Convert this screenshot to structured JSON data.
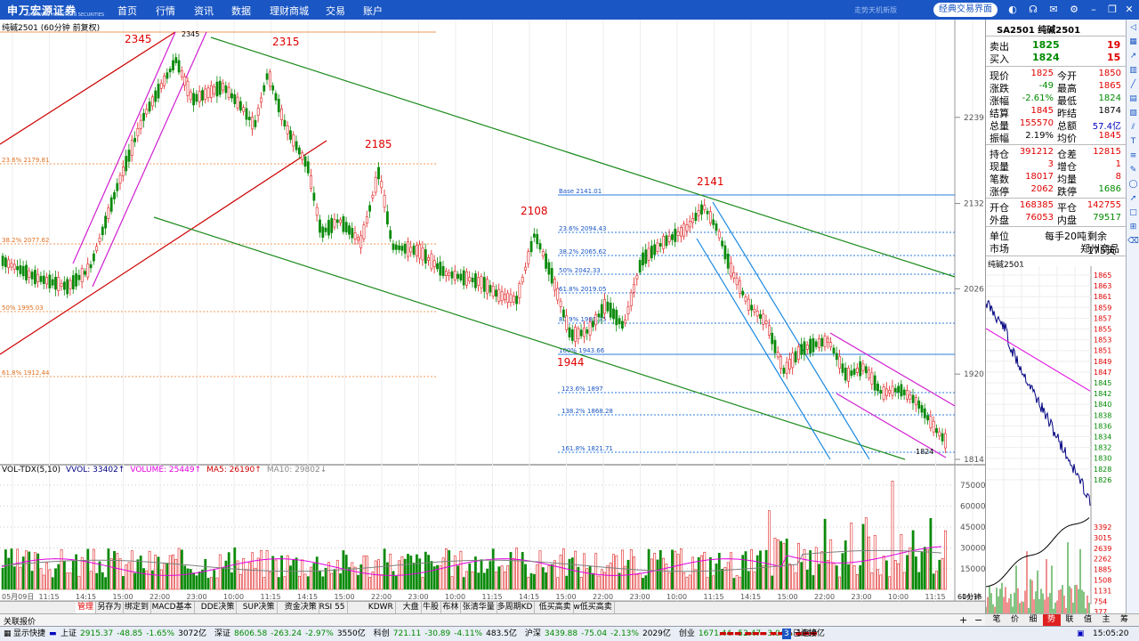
{
  "topbar": {
    "logo": "申万宏源证券",
    "logo_sub": "SHENWAN HONGYUAN SECURITIES",
    "nav": [
      "首页",
      "行情",
      "资讯",
      "数据",
      "理财商城",
      "交易",
      "账户"
    ],
    "ad_text": "走势天机新版",
    "classic_label": "经典交易界面",
    "icons": [
      "skin-icon",
      "headset-icon",
      "mail-icon",
      "settings-icon",
      "minimize-icon",
      "restore-icon",
      "close-icon"
    ],
    "clock": ""
  },
  "main_chart": {
    "title": "纯碱2501 (60分钟 前复权)",
    "price_axis": [
      "2239",
      "2132",
      "2026",
      "1920",
      "1814"
    ],
    "peak_labels": [
      "2345",
      "2315",
      "2185",
      "2108",
      "2141",
      "1944"
    ],
    "peak_small": "2345",
    "fib_left": [
      "23.6% 2179.81",
      "38.2% 2077.62",
      "50% 1995.03",
      "61.8% 1912.44"
    ],
    "fib_right": [
      "Base 2141.01",
      "23.6% 2094.43",
      "38.2% 2065.62",
      "50% 2042.33",
      "61.8% 2019.05",
      "80.9% 1981.35",
      "100% 1943.66",
      "123.6% 1897",
      "138.2% 1868.28",
      "161.8% 1821.71"
    ],
    "last_price_label": "1824",
    "time_axis": [
      "05月09日",
      "11:15",
      "14:15",
      "15:00",
      "22:00",
      "23:00",
      "10:00",
      "11:15",
      "14:15",
      "15:00",
      "22:00",
      "23:00",
      "10:00",
      "11:15",
      "14:15",
      "15:00",
      "22:00",
      "23:00",
      "10:00",
      "11:15",
      "14:15",
      "15:00",
      "22:00",
      "23:00",
      "10:00",
      "11:15",
      "14:15"
    ],
    "period_label": "60分钟"
  },
  "volume": {
    "legend": [
      {
        "text": "VOL-TDX(5,10)",
        "color": "#000000"
      },
      {
        "text": "VVOL: 33402↑",
        "color": "#000080"
      },
      {
        "text": "VOLUME: 25449↑",
        "color": "#e000e0"
      },
      {
        "text": "MA5: 26190↑",
        "color": "#cc0000"
      },
      {
        "text": "MA10: 29802↓",
        "color": "#888888"
      }
    ],
    "axis": [
      "75000",
      "60000",
      "45000",
      "30000",
      "15000"
    ]
  },
  "tabs": [
    "管理",
    "另存为",
    "绑定到",
    "MACD基本",
    "DDE决策",
    "SUP决策",
    "资金决策",
    "RSI 55",
    "KDWR",
    "大盘",
    "牛股",
    "布林",
    "张清华量",
    "多周期KD",
    "低买高卖",
    "w低买高卖"
  ],
  "tab_row2": "关联报价",
  "quote": {
    "code_name": "SA2501 纯碱2501",
    "sell": {
      "label": "卖出",
      "price": "1825",
      "qty": "19"
    },
    "buy": {
      "label": "买入",
      "price": "1824",
      "qty": "15"
    },
    "rows": [
      [
        {
          "l": "现价",
          "v": "1825",
          "c": "red"
        },
        {
          "l": "今开",
          "v": "1850",
          "c": "red"
        }
      ],
      [
        {
          "l": "涨跌",
          "v": "-49",
          "c": "green"
        },
        {
          "l": "最高",
          "v": "1865",
          "c": "red"
        }
      ],
      [
        {
          "l": "涨幅",
          "v": "-2.61%",
          "c": "green"
        },
        {
          "l": "最低",
          "v": "1824",
          "c": "green"
        }
      ],
      [
        {
          "l": "结算",
          "v": "1845",
          "c": "red"
        },
        {
          "l": "昨结",
          "v": "1874",
          "c": "black"
        }
      ],
      [
        {
          "l": "总量",
          "v": "155570",
          "c": "red"
        },
        {
          "l": "总额",
          "v": "57.4亿",
          "c": "blue"
        }
      ],
      [
        {
          "l": "振幅",
          "v": "2.19%",
          "c": "black"
        },
        {
          "l": "均价",
          "v": "1845",
          "c": "red"
        }
      ]
    ],
    "rows2": [
      [
        {
          "l": "持仓",
          "v": "391212",
          "c": "red"
        },
        {
          "l": "仓差",
          "v": "12815",
          "c": "red"
        }
      ],
      [
        {
          "l": "现量",
          "v": "3",
          "c": "red"
        },
        {
          "l": "增仓",
          "v": "1",
          "c": "red"
        }
      ],
      [
        {
          "l": "笔数",
          "v": "18017",
          "c": "red"
        },
        {
          "l": "均量",
          "v": "8",
          "c": "red"
        }
      ],
      [
        {
          "l": "涨停",
          "v": "2062",
          "c": "red"
        },
        {
          "l": "跌停",
          "v": "1686",
          "c": "green"
        }
      ]
    ],
    "rows3": [
      [
        {
          "l": "开仓",
          "v": "168385",
          "c": "red"
        },
        {
          "l": "平仓",
          "v": "142755",
          "c": "red"
        }
      ],
      [
        {
          "l": "外盘",
          "v": "76053",
          "c": "red"
        },
        {
          "l": "内盘",
          "v": "79517",
          "c": "green"
        }
      ]
    ],
    "unit_label": "单位",
    "unit_value": "每手20吨",
    "remain": "剩余175天",
    "market_label": "市场",
    "market_value": "郑州商品"
  },
  "mini_chart": {
    "title": "纯碱2501",
    "price_axis": [
      "1865",
      "1863",
      "1861",
      "1859",
      "1857",
      "1855",
      "1853",
      "1851",
      "1849",
      "1847",
      "1845",
      "1842",
      "1840",
      "1838",
      "1836",
      "1834",
      "1832",
      "1830",
      "1828",
      "1826"
    ],
    "vol_axis": [
      "3392",
      "3015",
      "2639",
      "2262",
      "1885",
      "1508",
      "1131",
      "754",
      "377"
    ]
  },
  "right_tabs": [
    "笔",
    "价",
    "细",
    "势",
    "联",
    "值",
    "主",
    "筹"
  ],
  "status": {
    "label_display": "显示快捷",
    "indices": [
      {
        "name": "上证",
        "value": "2915.37",
        "change": "-48.85",
        "pct": "-1.65%",
        "amount": "3072亿"
      },
      {
        "name": "深证",
        "value": "8606.58",
        "change": "-263.24",
        "pct": "-2.97%",
        "amount": "3550亿"
      },
      {
        "name": "科创",
        "value": "721.11",
        "change": "-30.89",
        "pct": "-4.11%",
        "amount": "483.5亿"
      },
      {
        "name": "沪深",
        "value": "3439.88",
        "change": "-75.04",
        "pct": "-2.13%",
        "amount": "2029亿"
      },
      {
        "name": "创业",
        "value": "1671.44",
        "change": "-52.47",
        "pct": "-3.04%",
        "amount": "1660亿"
      }
    ],
    "conn_num": "3",
    "conn": "已连接",
    "time": "15:05:20"
  }
}
